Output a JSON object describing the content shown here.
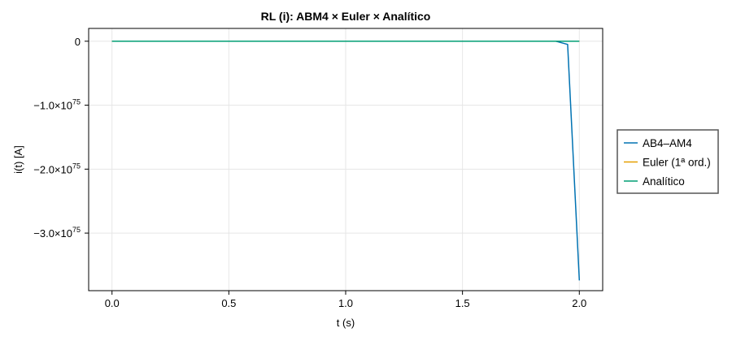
{
  "chart_data": {
    "type": "line",
    "title": "RL (i): ABM4 × Euler × Analítico",
    "xlabel": "t (s)",
    "ylabel": "i(t) [A]",
    "xlim": [
      -0.1,
      2.1
    ],
    "ylim": [
      -3.9e+75,
      2e+74
    ],
    "xticks": [
      {
        "value": 0.0,
        "label": "0.0"
      },
      {
        "value": 0.5,
        "label": "0.5"
      },
      {
        "value": 1.0,
        "label": "1.0"
      },
      {
        "value": 1.5,
        "label": "1.5"
      },
      {
        "value": 2.0,
        "label": "2.0"
      }
    ],
    "yticks": [
      {
        "value": 0,
        "mant": "0",
        "exp": ""
      },
      {
        "value": -1e+75,
        "mant": "−1.0×10",
        "exp": "75"
      },
      {
        "value": -2e+75,
        "mant": "−2.0×10",
        "exp": "75"
      },
      {
        "value": -3e+75,
        "mant": "−3.0×10",
        "exp": "75"
      }
    ],
    "grid": true,
    "legend_position": "right",
    "series": [
      {
        "name": "AB4–AM4",
        "color": "#0072b2",
        "points": [
          [
            0.0,
            0
          ],
          [
            1.9,
            0
          ],
          [
            1.95,
            -5e+73
          ],
          [
            2.0,
            -3.74e+75
          ]
        ]
      },
      {
        "name": "Euler (1ª ord.)",
        "color": "#e69f00",
        "points": [
          [
            0.0,
            0
          ],
          [
            2.0,
            0
          ]
        ]
      },
      {
        "name": "Analítico",
        "color": "#009e73",
        "points": [
          [
            0.0,
            0
          ],
          [
            2.0,
            0
          ]
        ]
      }
    ]
  }
}
